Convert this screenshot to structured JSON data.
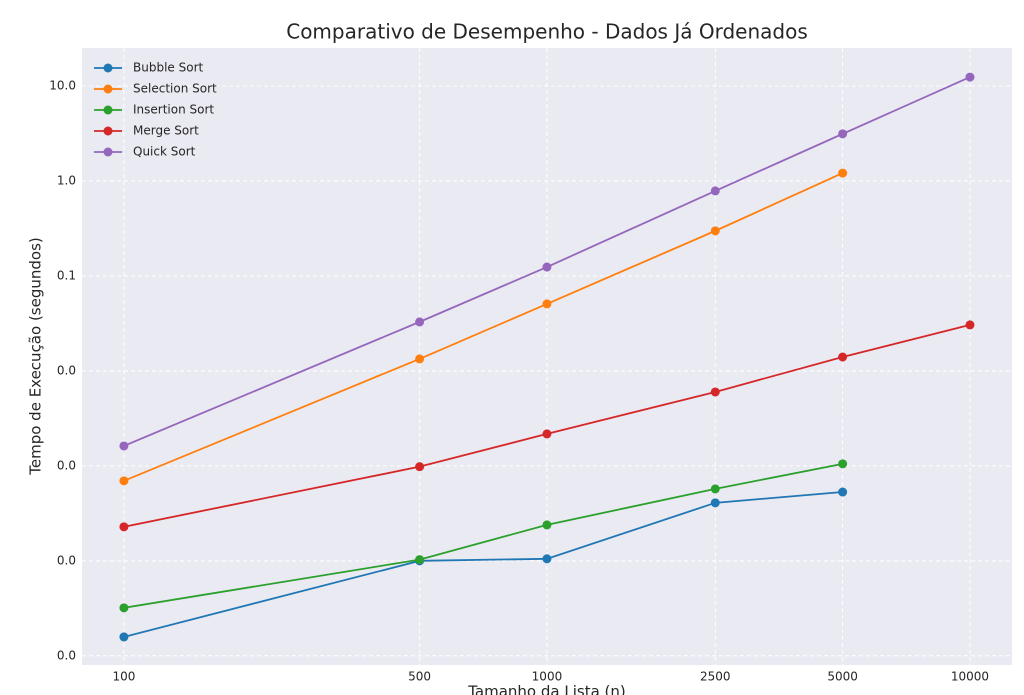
{
  "chart_data": {
    "type": "line",
    "title": "Comparativo de Desempenho - Dados Já Ordenados",
    "x_label": "Tamanho da Lista (n)",
    "y_label": "Tempo de Execução (segundos)",
    "x": [
      100,
      500,
      1000,
      2500,
      5000,
      10000
    ],
    "series": [
      {
        "name": "Bubble Sort",
        "color": "#1f77b4",
        "values": [
          1.58e-05,
          0.0001,
          0.000105,
          0.000408,
          0.00053,
          null
        ]
      },
      {
        "name": "Selection Sort",
        "color": "#ff7f0e",
        "values": [
          0.000695,
          0.01337,
          0.0507,
          0.298,
          1.21,
          null
        ]
      },
      {
        "name": "Insertion Sort",
        "color": "#2ca02c",
        "values": [
          3.2e-05,
          0.000103,
          0.000239,
          0.000572,
          0.00105,
          null
        ]
      },
      {
        "name": "Merge Sort",
        "color": "#d62728",
        "values": [
          0.000228,
          0.00098,
          0.00217,
          0.006,
          0.014,
          0.0305
        ]
      },
      {
        "name": "Quick Sort",
        "color": "#9467bd",
        "values": [
          0.00162,
          0.0328,
          0.124,
          0.785,
          3.13,
          12.4
        ]
      }
    ],
    "x_log": true,
    "y_log": true,
    "xlim": [
      79.6,
      12570
    ],
    "ylim": [
      8e-06,
      25.1
    ],
    "xticks": [
      100,
      500,
      1000,
      2500,
      5000,
      10000
    ],
    "yticks": [
      {
        "value": 10,
        "label": "10.0"
      },
      {
        "value": 1,
        "label": "1.0"
      },
      0.1,
      {
        "value": 0.01,
        "label": "0.0"
      },
      {
        "value": 0.001,
        "label": "0.0"
      },
      {
        "value": 0.0001,
        "label": "0.0"
      },
      {
        "value": 1e-05,
        "label": "0.0"
      }
    ],
    "grid": true,
    "legend": "upper-left"
  }
}
